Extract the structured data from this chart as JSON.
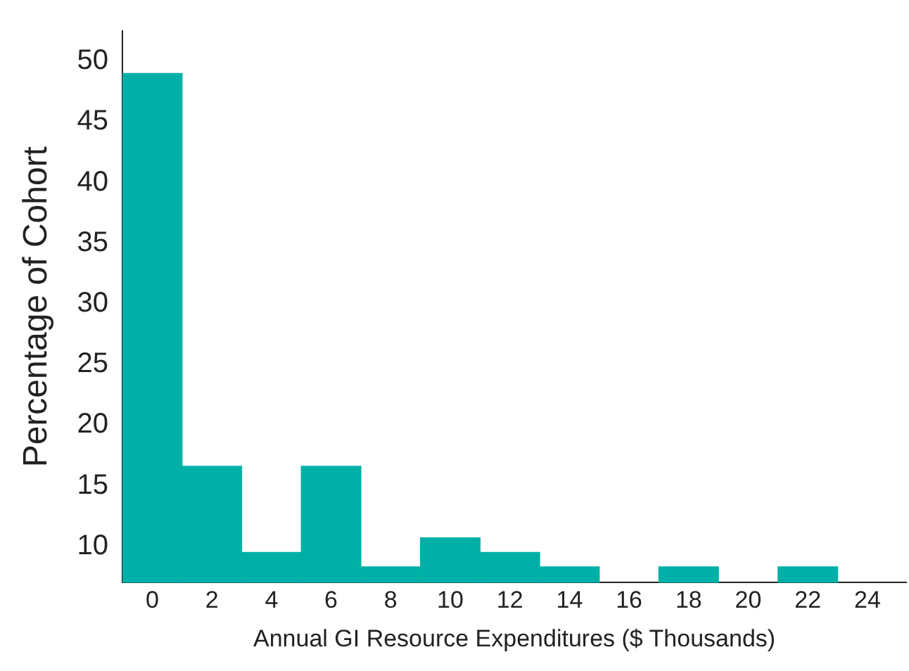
{
  "chart_data": {
    "type": "histogram",
    "xlabel": "Annual GI Resource Expenditures ($ Thousands)",
    "ylabel": "Percentage of Cohort",
    "bins": [
      -1,
      1,
      3,
      5,
      7,
      9,
      11,
      13,
      15,
      17,
      19,
      21,
      23
    ],
    "values": [
      49,
      16.6,
      9.5,
      16.6,
      8.3,
      10.7,
      9.5,
      8.3,
      null,
      8.3,
      null,
      8.3
    ],
    "color": "#00b0a6",
    "xlim": [
      -1,
      25.3
    ],
    "xticks": [
      0,
      2,
      4,
      6,
      8,
      10,
      12,
      14,
      16,
      18,
      20,
      22,
      24
    ],
    "ylim": [
      7,
      52.5
    ],
    "yticks": [
      10,
      15,
      20,
      25,
      30,
      35,
      40,
      45,
      50
    ],
    "grid": false,
    "legend": false
  }
}
